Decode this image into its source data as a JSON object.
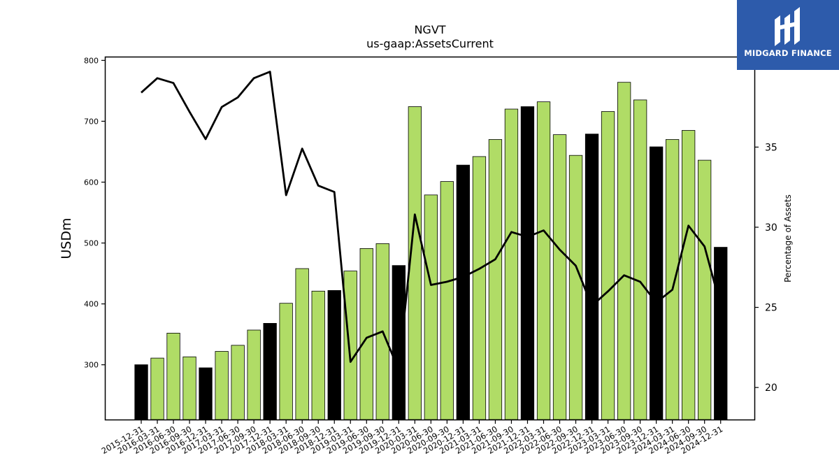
{
  "brand": {
    "name": "MIDGARD FINANCE"
  },
  "chart_data": {
    "type": "bar",
    "title": "NGVT",
    "subtitle": "us-gaap:AssetsCurrent",
    "ylabel": "USDm",
    "y2label": "Percentage of Assets",
    "ylim": [
      210,
      805
    ],
    "y2lim": [
      18,
      40.6
    ],
    "yticks": [
      300,
      400,
      500,
      600,
      700,
      800
    ],
    "y2ticks": [
      20,
      25,
      30,
      35
    ],
    "categories": [
      "2015-12-31",
      "2016-03-31",
      "2016-06-30",
      "2016-09-30",
      "2016-12-31",
      "2017-03-31",
      "2017-06-30",
      "2017-09-30",
      "2017-12-31",
      "2018-03-31",
      "2018-06-30",
      "2018-09-30",
      "2018-12-31",
      "2019-03-31",
      "2019-06-30",
      "2019-09-30",
      "2019-12-31",
      "2020-03-31",
      "2020-06-30",
      "2020-09-30",
      "2020-12-31",
      "2021-03-31",
      "2021-06-30",
      "2021-09-30",
      "2021-12-31",
      "2022-03-31",
      "2022-06-30",
      "2022-09-30",
      "2022-12-31",
      "2023-03-31",
      "2023-06-30",
      "2023-09-30",
      "2023-12-31",
      "2024-03-31",
      "2024-06-30",
      "2024-09-30",
      "2024-12-31"
    ],
    "series": [
      {
        "type": "bar",
        "axis": "left",
        "values": [
          300,
          311,
          352,
          313,
          295,
          322,
          332,
          357,
          368,
          401,
          458,
          421,
          422,
          454,
          491,
          499,
          463,
          724,
          579,
          601,
          628,
          642,
          670,
          720,
          724,
          732,
          678,
          644,
          679,
          716,
          764,
          735,
          658,
          670,
          685,
          636,
          493
        ]
      },
      {
        "type": "line",
        "axis": "right",
        "values": [
          38.4,
          39.3,
          39.0,
          37.2,
          35.5,
          37.5,
          38.1,
          39.3,
          39.7,
          32.0,
          34.9,
          32.6,
          32.2,
          21.6,
          23.1,
          23.5,
          21.1,
          30.8,
          26.4,
          26.6,
          26.9,
          27.4,
          28.0,
          29.7,
          29.4,
          29.8,
          28.6,
          27.6,
          25.1,
          26.0,
          27.0,
          26.6,
          25.3,
          26.1,
          30.1,
          28.8,
          25.1
        ]
      }
    ],
    "bar_colors": {
      "quarter": "#b0dc66",
      "year_end": "#000000"
    },
    "line_color": "#000000",
    "grid": false,
    "legend": "none"
  }
}
